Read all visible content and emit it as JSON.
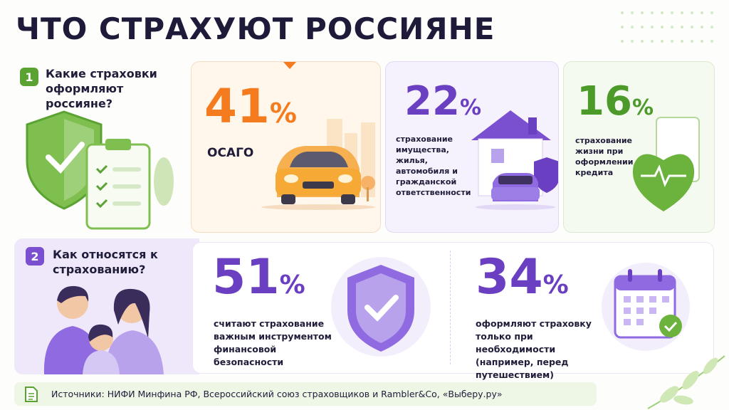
{
  "header": {
    "title": "ЧТО СТРАХУЮТ РОССИЯНЕ"
  },
  "section1": {
    "number": "1",
    "question": "Какие страховки оформляют россияне?",
    "cards": [
      {
        "value": 41,
        "unit": "%",
        "label": "ОСАГО"
      },
      {
        "value": 22,
        "unit": "%",
        "label": "страхование имущества, жилья, автомобиля и гражданской ответственности"
      },
      {
        "value": 16,
        "unit": "%",
        "label": "страхование жизни при оформлении кредита"
      }
    ]
  },
  "section2": {
    "number": "2",
    "question": "Как относятся к страхованию?",
    "items": [
      {
        "value": 51,
        "unit": "%",
        "label": "считают страхование важным инструментом финансовой безопасности"
      },
      {
        "value": 34,
        "unit": "%",
        "label": "оформляют страховку только при необходимости (например, перед путешествием)"
      }
    ]
  },
  "footer": {
    "sources": "Источники: НИФИ Минфина РФ, Всероссийский союз страховщиков и Rambler&Co, «Выберу.ру»"
  }
}
